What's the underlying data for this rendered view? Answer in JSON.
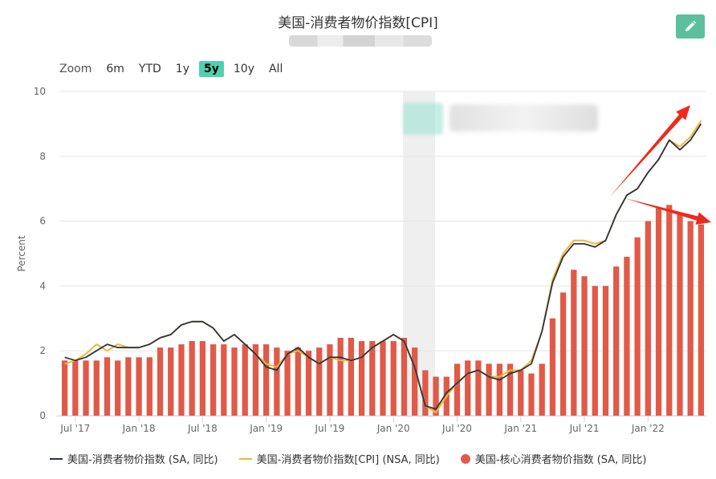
{
  "title": "美国-消费者物价指数[CPI]",
  "zoom": {
    "label": "Zoom",
    "buttons": [
      "6m",
      "YTD",
      "1y",
      "5y",
      "10y",
      "All"
    ],
    "active": "5y"
  },
  "colors": {
    "sa_line": "#2d3440",
    "nsa_line": "#f2b632",
    "core_bar": "#e05a47",
    "arrow": "#ee2a1e",
    "edit_button": "#5cbf9e"
  },
  "icons": {
    "edit": "pencil-icon"
  },
  "chart_data": {
    "type": "bar+line",
    "ylabel": "Percent",
    "ylim": [
      0,
      10
    ],
    "yticks": [
      0,
      2,
      4,
      6,
      8,
      10
    ],
    "x_tick_labels": [
      "Jul '17",
      "Jan '18",
      "Jul '18",
      "Jan '19",
      "Jul '19",
      "Jan '20",
      "Jul '20",
      "Jan '21",
      "Jul '21",
      "Jan '22"
    ],
    "x_tick_months": [
      "2017-07",
      "2018-01",
      "2018-07",
      "2019-01",
      "2019-07",
      "2020-01",
      "2020-07",
      "2021-01",
      "2021-07",
      "2022-01"
    ],
    "months": [
      "2017-06",
      "2017-07",
      "2017-08",
      "2017-09",
      "2017-10",
      "2017-11",
      "2017-12",
      "2018-01",
      "2018-02",
      "2018-03",
      "2018-04",
      "2018-05",
      "2018-06",
      "2018-07",
      "2018-08",
      "2018-09",
      "2018-10",
      "2018-11",
      "2018-12",
      "2019-01",
      "2019-02",
      "2019-03",
      "2019-04",
      "2019-05",
      "2019-06",
      "2019-07",
      "2019-08",
      "2019-09",
      "2019-10",
      "2019-11",
      "2019-12",
      "2020-01",
      "2020-02",
      "2020-03",
      "2020-04",
      "2020-05",
      "2020-06",
      "2020-07",
      "2020-08",
      "2020-09",
      "2020-10",
      "2020-11",
      "2020-12",
      "2021-01",
      "2021-02",
      "2021-03",
      "2021-04",
      "2021-05",
      "2021-06",
      "2021-07",
      "2021-08",
      "2021-09",
      "2021-10",
      "2021-11",
      "2021-12",
      "2022-01",
      "2022-02",
      "2022-03",
      "2022-04",
      "2022-05",
      "2022-06"
    ],
    "grid": true,
    "legend_position": "bottom",
    "series": [
      {
        "name": "美国-消费者物价指数 (SA, 同比)",
        "type": "line",
        "values": [
          1.8,
          1.7,
          1.8,
          2.0,
          2.2,
          2.1,
          2.1,
          2.1,
          2.2,
          2.4,
          2.5,
          2.8,
          2.9,
          2.9,
          2.7,
          2.3,
          2.5,
          2.2,
          1.9,
          1.5,
          1.4,
          1.9,
          2.1,
          1.8,
          1.6,
          1.8,
          1.8,
          1.7,
          1.8,
          2.1,
          2.3,
          2.5,
          2.3,
          1.5,
          0.3,
          0.2,
          0.7,
          1.0,
          1.3,
          1.4,
          1.2,
          1.1,
          1.3,
          1.4,
          1.6,
          2.6,
          4.1,
          4.9,
          5.3,
          5.3,
          5.2,
          5.4,
          6.2,
          6.8,
          7.0,
          7.5,
          7.9,
          8.5,
          8.2,
          8.5,
          9.0
        ]
      },
      {
        "name": "美国-消费者物价指数[CPI] (NSA, 同比)",
        "type": "line",
        "values": [
          1.6,
          1.7,
          1.9,
          2.2,
          2.0,
          2.2,
          2.1,
          2.1,
          2.2,
          2.4,
          2.5,
          2.8,
          2.9,
          2.9,
          2.7,
          2.3,
          2.5,
          2.2,
          1.9,
          1.6,
          1.5,
          1.9,
          2.0,
          1.8,
          1.6,
          1.8,
          1.7,
          1.7,
          1.8,
          2.1,
          2.3,
          2.5,
          2.3,
          1.5,
          0.3,
          0.1,
          0.6,
          1.0,
          1.3,
          1.4,
          1.2,
          1.2,
          1.4,
          1.4,
          1.7,
          2.6,
          4.2,
          5.0,
          5.4,
          5.4,
          5.3,
          5.4,
          6.2,
          6.8,
          7.0,
          7.5,
          7.9,
          8.5,
          8.3,
          8.6,
          9.1
        ]
      },
      {
        "name": "美国-核心消费者物价指数 (SA, 同比)",
        "type": "bar",
        "values": [
          1.7,
          1.7,
          1.7,
          1.7,
          1.8,
          1.7,
          1.8,
          1.8,
          1.8,
          2.1,
          2.1,
          2.2,
          2.3,
          2.3,
          2.2,
          2.2,
          2.1,
          2.2,
          2.2,
          2.2,
          2.1,
          2.0,
          2.1,
          2.0,
          2.1,
          2.2,
          2.4,
          2.4,
          2.3,
          2.3,
          2.3,
          2.3,
          2.4,
          2.1,
          1.4,
          1.2,
          1.2,
          1.6,
          1.7,
          1.7,
          1.6,
          1.6,
          1.6,
          1.4,
          1.3,
          1.6,
          3.0,
          3.8,
          4.5,
          4.3,
          4.0,
          4.0,
          4.6,
          4.9,
          5.5,
          6.0,
          6.4,
          6.5,
          6.2,
          6.0,
          5.9
        ]
      }
    ]
  }
}
